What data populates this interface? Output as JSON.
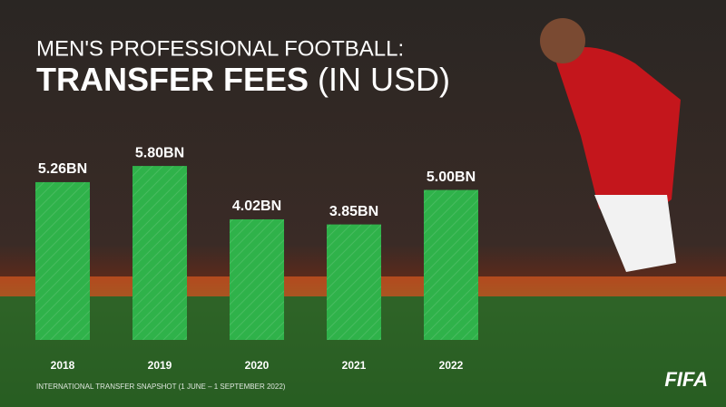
{
  "chart_data": {
    "type": "bar",
    "title": "MEN'S PROFESSIONAL FOOTBALL:",
    "title_main": "TRANSFER FEES",
    "title_unit": "(IN USD)",
    "categories": [
      "2018",
      "2019",
      "2020",
      "2021",
      "2022"
    ],
    "values": [
      5.26,
      5.8,
      4.02,
      3.85,
      5.0
    ],
    "value_labels": [
      "5.26BN",
      "5.80BN",
      "4.02BN",
      "3.85BN",
      "5.00BN"
    ],
    "color": "#2fb24a",
    "ylim": [
      0,
      11
    ],
    "footnote": "INTERNATIONAL TRANSFER SNAPSHOT (1 JUNE – 1 SEPTEMBER 2022)",
    "logo": "FIFA"
  }
}
